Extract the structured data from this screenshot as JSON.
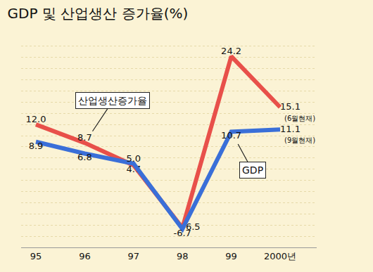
{
  "chart_data": {
    "type": "line",
    "title": "GDP 및 산업생산 증가율(%)",
    "categories": [
      "95",
      "96",
      "97",
      "98",
      "99",
      "2000년"
    ],
    "series": [
      {
        "name": "산업생산증가율",
        "color": "#e8504a",
        "values": [
          12.0,
          8.7,
          4.7,
          -6.5,
          24.2,
          15.1
        ],
        "value_labels": [
          "12.0",
          "8.7",
          "4.7",
          "-6.5",
          "24.2",
          "15.1"
        ]
      },
      {
        "name": "GDP",
        "color": "#3a6fd8",
        "values": [
          8.9,
          6.8,
          5.0,
          -6.7,
          10.7,
          11.1
        ],
        "value_labels": [
          "8.9",
          "6.8",
          "5.0",
          "-6.7",
          "10.7",
          "11.1"
        ]
      }
    ],
    "annotations": [
      {
        "text": "(6월현재)",
        "category": "2000년",
        "series": "산업생산증가율"
      },
      {
        "text": "(9월현재)",
        "category": "2000년",
        "series": "GDP"
      }
    ],
    "ylim": [
      -10,
      28
    ],
    "yticks": [
      -10,
      -8,
      -6,
      -4,
      -2,
      0,
      2,
      4,
      6,
      8,
      10,
      12,
      14,
      16,
      18,
      20,
      22,
      24,
      26,
      28
    ],
    "grid": true,
    "data_labels": true,
    "tick_labels": "x"
  }
}
